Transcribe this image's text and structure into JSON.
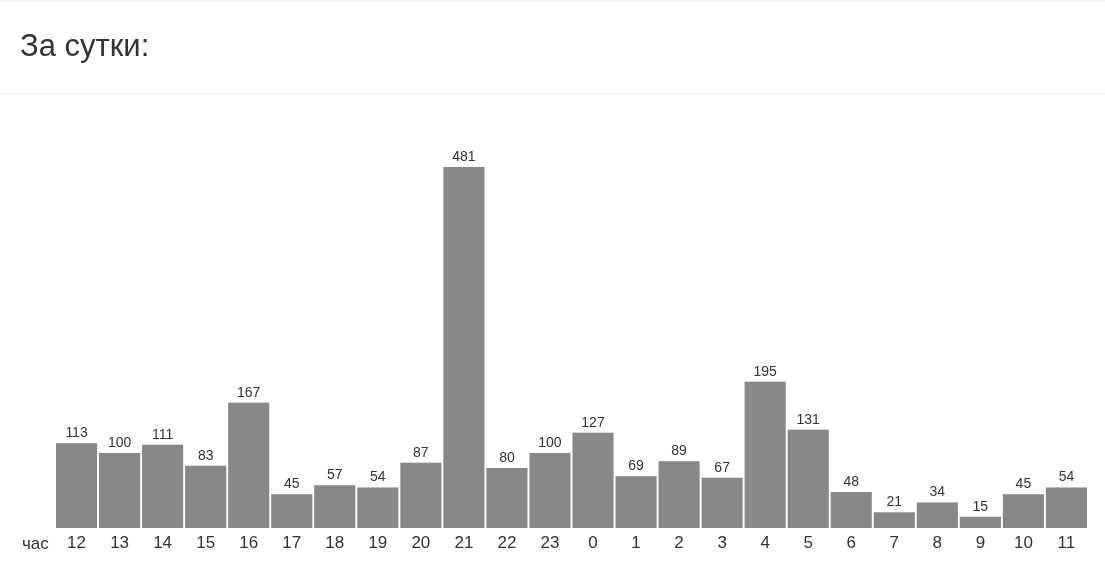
{
  "chart_data": {
    "type": "bar",
    "title": "За сутки:",
    "xlabel": "час",
    "categories": [
      "12",
      "13",
      "14",
      "15",
      "16",
      "17",
      "18",
      "19",
      "20",
      "21",
      "22",
      "23",
      "0",
      "1",
      "2",
      "3",
      "4",
      "5",
      "6",
      "7",
      "8",
      "9",
      "10",
      "11"
    ],
    "values": [
      113,
      100,
      111,
      83,
      167,
      45,
      57,
      54,
      87,
      481,
      80,
      100,
      127,
      69,
      89,
      67,
      195,
      131,
      48,
      21,
      34,
      15,
      45,
      54
    ],
    "color": "#888888",
    "data_labels": true
  }
}
